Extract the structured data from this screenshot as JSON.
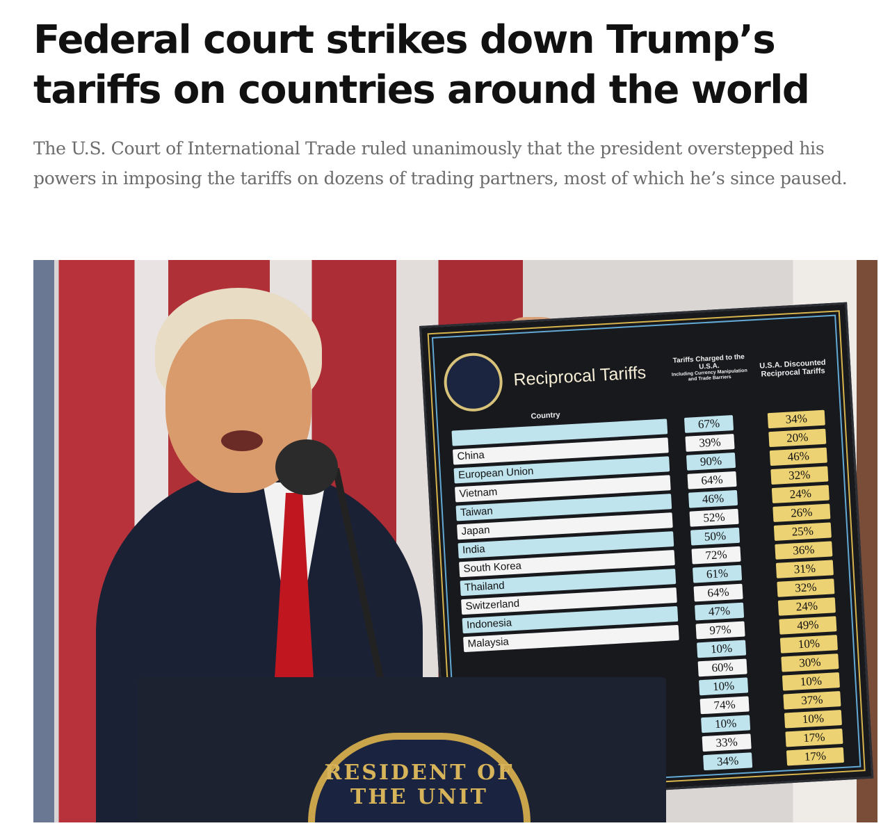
{
  "article": {
    "headline": "Federal court strikes down Trump’s tariffs on countries around the world",
    "dek": "The U.S. Court of International Trade ruled unanimously that the president overstepped his powers in imposing the tariffs on dozens of trading partners, most of which he’s since paused."
  },
  "photo": {
    "podium_seal_text": "RESIDENT OF THE UNIT",
    "board": {
      "title": "Reciprocal Tariffs",
      "col_country": "Country",
      "col_charged": "Tariffs Charged to the U.S.A.",
      "col_charged_sub": "Including Currency Manipulation and Trade Barriers",
      "col_discounted": "U.S.A. Discounted Reciprocal Tariffs",
      "countries": [
        "",
        "China",
        "European Union",
        "Vietnam",
        "Taiwan",
        "Japan",
        "India",
        "South Korea",
        "Thailand",
        "Switzerland",
        "Indonesia",
        "Malaysia"
      ],
      "charged": [
        "67%",
        "39%",
        "90%",
        "64%",
        "46%",
        "52%",
        "50%",
        "72%",
        "61%",
        "64%",
        "47%",
        "97%",
        "10%",
        "60%",
        "10%",
        "74%",
        "10%",
        "33%",
        "34%"
      ],
      "discounted": [
        "34%",
        "20%",
        "46%",
        "32%",
        "24%",
        "26%",
        "25%",
        "36%",
        "31%",
        "32%",
        "24%",
        "49%",
        "10%",
        "30%",
        "10%",
        "37%",
        "10%",
        "17%",
        "17%"
      ]
    }
  }
}
